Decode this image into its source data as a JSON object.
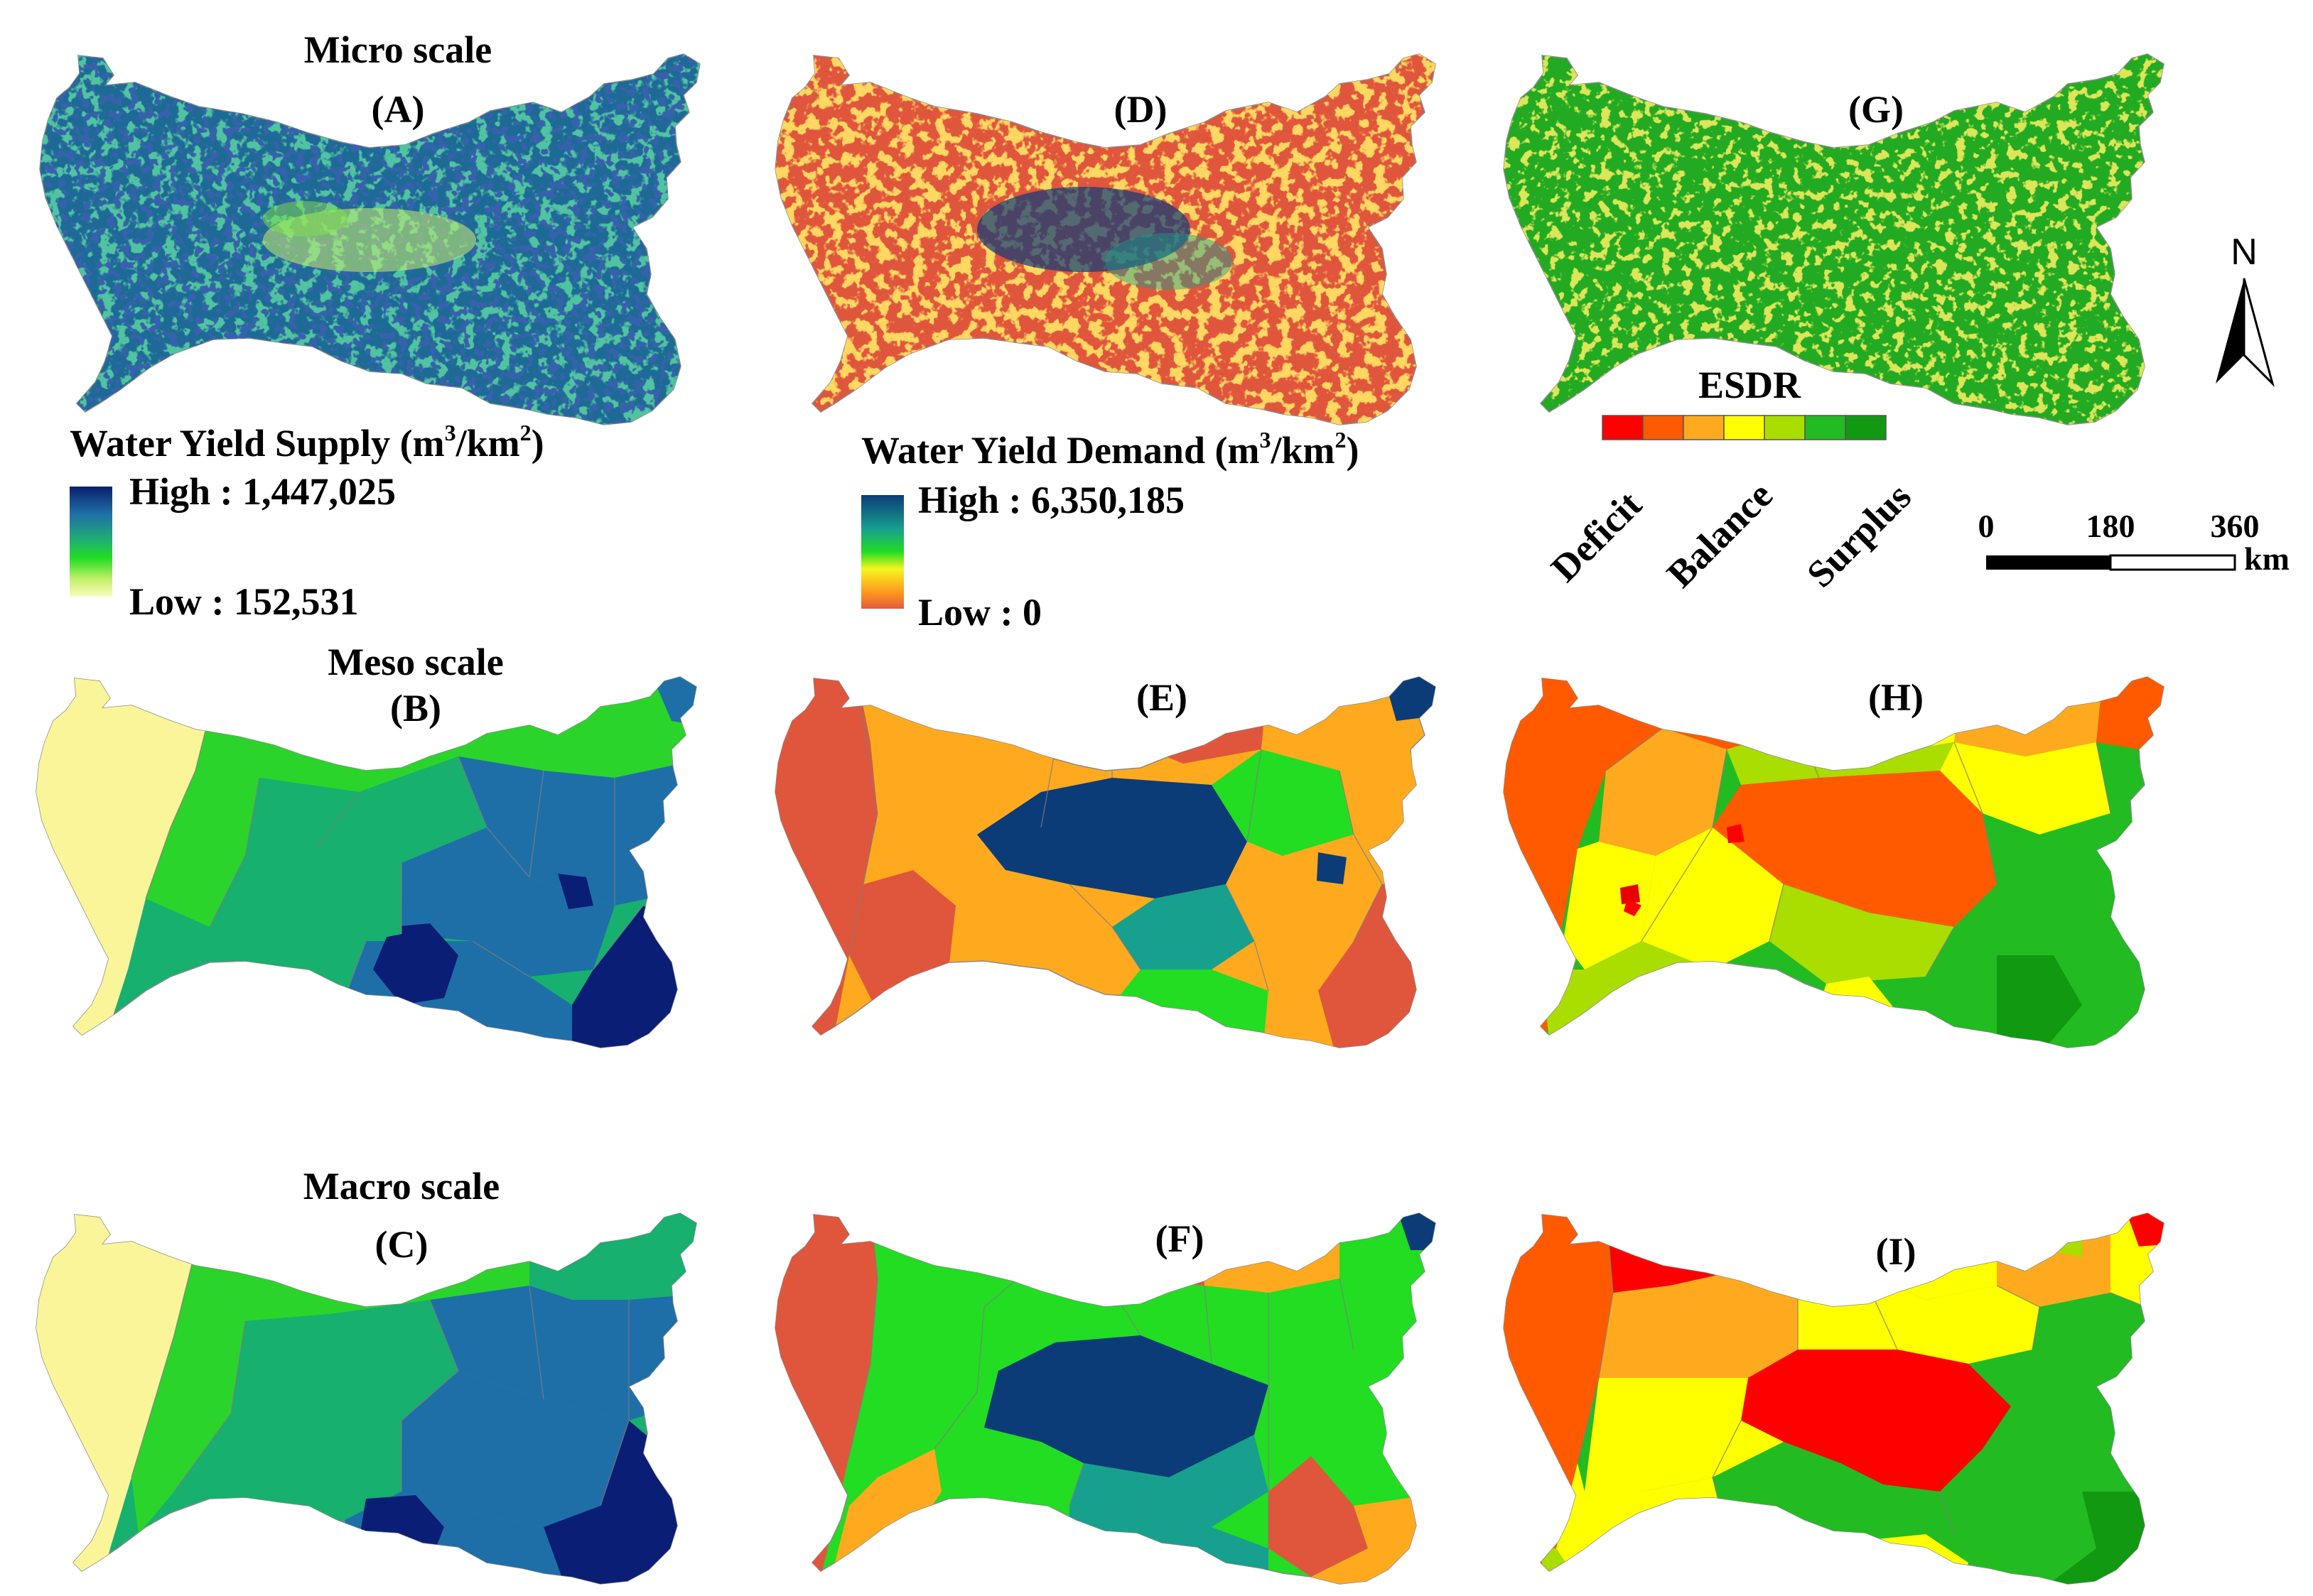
{
  "row_titles": {
    "micro": "Micro scale",
    "meso": "Meso scale",
    "macro": "Macro scale"
  },
  "panels": [
    {
      "id": "A",
      "label": "(A)"
    },
    {
      "id": "B",
      "label": "(B)"
    },
    {
      "id": "C",
      "label": "(C)"
    },
    {
      "id": "D",
      "label": "(D)"
    },
    {
      "id": "E",
      "label": "(E)"
    },
    {
      "id": "F",
      "label": "(F)"
    },
    {
      "id": "G",
      "label": "(G)"
    },
    {
      "id": "H",
      "label": "(H)"
    },
    {
      "id": "I",
      "label": "(I)"
    }
  ],
  "legends": {
    "supply": {
      "title": "Water Yield Supply (m",
      "sup1": "3",
      "mid": "/km",
      "sup2": "2",
      "end": ")",
      "high": "High : 1,447,025",
      "low": "Low : 152,531",
      "ramp": [
        "#0b1f6e",
        "#1f6fa8",
        "#1fb36e",
        "#22dd22",
        "#c8f06e",
        "#fbfbc0"
      ]
    },
    "demand": {
      "title": "Water Yield Demand (m",
      "sup1": "3",
      "mid": "/km",
      "sup2": "2",
      "end": ")",
      "high": "High : 6,350,185",
      "low": "Low : 0",
      "ramp": [
        "#0b3c78",
        "#17a08e",
        "#22dd22",
        "#f5f51e",
        "#ff9a1e",
        "#e35a3c"
      ]
    },
    "esdr": {
      "title": "ESDR",
      "classes": [
        "#ff0000",
        "#ff5a00",
        "#ffaa1e",
        "#ffff00",
        "#aadd00",
        "#22bb22",
        "#119911"
      ],
      "labels": [
        "Deficit",
        "Balance",
        "Surplus"
      ]
    }
  },
  "north_arrow": "N",
  "scale_bar": {
    "ticks": [
      "0",
      "180",
      "360"
    ],
    "unit": "km"
  },
  "colors": {
    "supply": [
      "#fbf59a",
      "#2bd42b",
      "#17b06e",
      "#1e8f8c",
      "#1e6fa8",
      "#0a1e75"
    ],
    "demand": [
      "#e0563c",
      "#ffaa1e",
      "#22dd22",
      "#17a08e",
      "#0b3c78"
    ],
    "esdr": [
      "#ff0000",
      "#ff5a00",
      "#ffaa1e",
      "#ffff00",
      "#aadd00",
      "#22bb22",
      "#119911"
    ]
  }
}
